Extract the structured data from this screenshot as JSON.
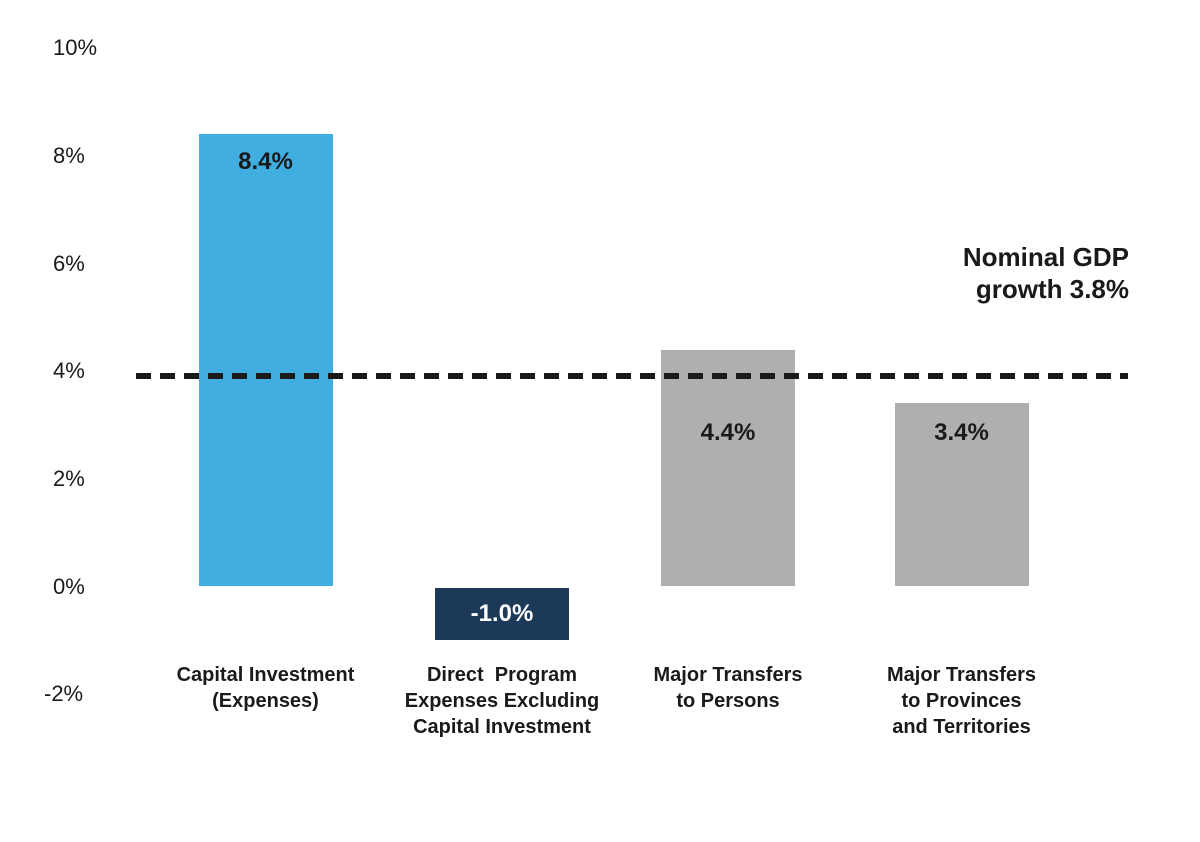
{
  "chart_data": {
    "type": "bar",
    "categories": [
      "Capital Investment\n(Expenses)",
      "Direct  Program\nExpenses Excluding\nCapital Investment",
      "Major Transfers\nto Persons",
      "Major Transfers\nto Provinces\nand Territories"
    ],
    "values": [
      8.4,
      -1.0,
      4.4,
      3.4
    ],
    "bar_labels": [
      "8.4%",
      "-1.0%",
      "4.4%",
      "3.4%"
    ],
    "bar_colors": [
      "#41aee0",
      "#1c3a58",
      "#afafaf",
      "#afafaf"
    ],
    "bar_label_colors": [
      "#1a1a1a",
      "#ffffff",
      "#1a1a1a",
      "#1a1a1a"
    ],
    "yticks": [
      {
        "label": "10%",
        "value": 10
      },
      {
        "label": "8%",
        "value": 8
      },
      {
        "label": "6%",
        "value": 6
      },
      {
        "label": "4%",
        "value": 4
      },
      {
        "label": "2%",
        "value": 2
      },
      {
        "label": "0%",
        "value": 0
      },
      {
        "label": "-2%",
        "value": -2
      }
    ],
    "ylim": [
      -2,
      10
    ],
    "grid": false,
    "legend": false,
    "reference_line": {
      "value": 3.8,
      "label": "Nominal GDP\ngrowth 3.8%",
      "style": "dashed",
      "color": "#1a1a1a"
    },
    "text_color": "#1a1a1a",
    "background": "#ffffff"
  }
}
